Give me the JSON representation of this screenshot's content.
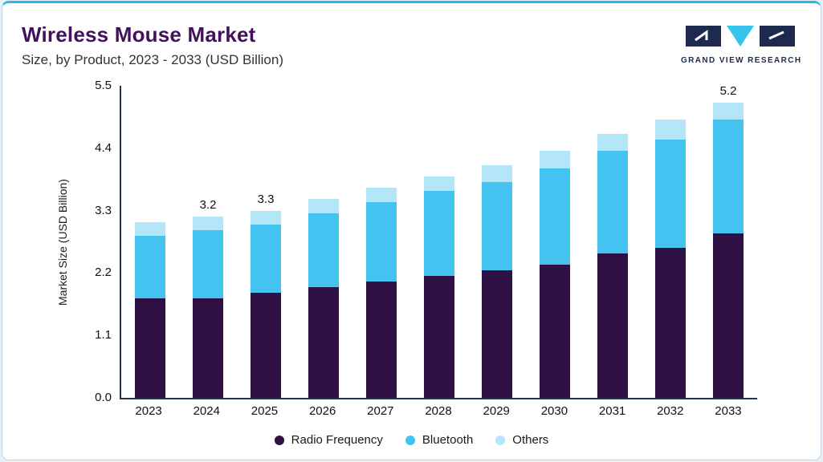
{
  "page": {
    "title": "Wireless Mouse Market",
    "subtitle": "Size, by Product, 2023 - 2033 (USD Billion)",
    "logo_text": "GRAND VIEW RESEARCH"
  },
  "colors": {
    "accent_top_bar": "#29b6e8",
    "title": "#43105e",
    "axis": "#24364a",
    "logo_navy": "#1c2a50",
    "logo_cyan": "#35c5ea"
  },
  "chart_data": {
    "type": "bar",
    "stacked": true,
    "title": "Wireless Mouse Market Size, by Product, 2023 - 2033 (USD Billion)",
    "ylabel": "Market Size (USD Billion)",
    "xlabel": "",
    "ylim": [
      0,
      5.5
    ],
    "yticks": [
      "0.0",
      "1.1",
      "2.2",
      "3.3",
      "4.4",
      "5.5"
    ],
    "grid": false,
    "legend_position": "bottom",
    "categories": [
      "2023",
      "2024",
      "2025",
      "2026",
      "2027",
      "2028",
      "2029",
      "2030",
      "2031",
      "2032",
      "2033"
    ],
    "series": [
      {
        "name": "Radio Frequency",
        "color": "#2e1045",
        "values": [
          1.75,
          1.75,
          1.85,
          1.95,
          2.05,
          2.15,
          2.25,
          2.35,
          2.55,
          2.65,
          2.9
        ]
      },
      {
        "name": "Bluetooth",
        "color": "#44c3f1",
        "values": [
          1.1,
          1.2,
          1.2,
          1.3,
          1.4,
          1.5,
          1.55,
          1.7,
          1.8,
          1.9,
          2.0
        ]
      },
      {
        "name": "Others",
        "color": "#b3e6f9",
        "values": [
          0.25,
          0.25,
          0.25,
          0.25,
          0.25,
          0.25,
          0.3,
          0.3,
          0.3,
          0.35,
          0.3
        ]
      }
    ],
    "totals": [
      3.1,
      3.2,
      3.3,
      3.5,
      3.7,
      3.9,
      4.1,
      4.35,
      4.65,
      4.9,
      5.2
    ],
    "bar_labels": [
      "",
      "3.2",
      "3.3",
      "",
      "",
      "",
      "",
      "",
      "",
      "",
      "5.2"
    ]
  }
}
